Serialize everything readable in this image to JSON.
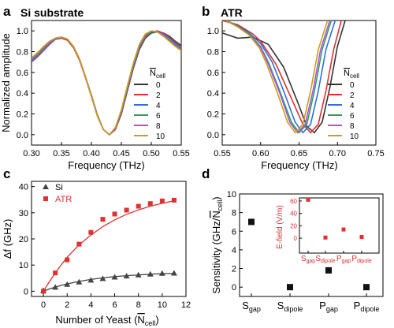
{
  "chart_data": [
    {
      "panel": "a",
      "type": "line",
      "title": "Si substrate",
      "xlabel": "Frequency (THz)",
      "ylabel": "Normalized amplitude",
      "xlim": [
        0.3,
        0.55
      ],
      "ylim": [
        -0.1,
        1.1
      ],
      "xticks": [
        "0.30",
        "0.35",
        "0.40",
        "0.45",
        "0.50",
        "0.55"
      ],
      "yticks": [
        "0.0",
        "0.2",
        "0.4",
        "0.6",
        "0.8",
        "1.0"
      ],
      "legend_title": "N̄cell",
      "legend_position": "right",
      "series": [
        {
          "name": "0",
          "color": "#333333",
          "x": [
            0.3,
            0.31,
            0.32,
            0.33,
            0.34,
            0.35,
            0.36,
            0.37,
            0.38,
            0.39,
            0.4,
            0.41,
            0.42,
            0.43,
            0.44,
            0.45,
            0.46,
            0.47,
            0.48,
            0.49,
            0.5,
            0.51,
            0.52,
            0.53,
            0.54,
            0.55
          ],
          "y": [
            0.72,
            0.76,
            0.82,
            0.88,
            0.92,
            0.93,
            0.91,
            0.84,
            0.72,
            0.56,
            0.38,
            0.19,
            0.05,
            0.0,
            0.05,
            0.2,
            0.42,
            0.64,
            0.82,
            0.93,
            0.98,
            0.99,
            0.98,
            0.95,
            0.9,
            0.86
          ]
        },
        {
          "name": "2",
          "color": "#e03030",
          "x": [
            0.3,
            0.31,
            0.32,
            0.33,
            0.34,
            0.35,
            0.36,
            0.37,
            0.38,
            0.39,
            0.4,
            0.41,
            0.42,
            0.43,
            0.44,
            0.45,
            0.46,
            0.47,
            0.48,
            0.49,
            0.5,
            0.51,
            0.52,
            0.53,
            0.54,
            0.55
          ],
          "y": [
            0.7,
            0.75,
            0.81,
            0.87,
            0.92,
            0.93,
            0.91,
            0.84,
            0.72,
            0.55,
            0.37,
            0.18,
            0.05,
            0.0,
            0.05,
            0.21,
            0.43,
            0.65,
            0.83,
            0.94,
            0.99,
            1.0,
            0.98,
            0.94,
            0.89,
            0.85
          ]
        },
        {
          "name": "4",
          "color": "#2f6fd6",
          "x": [
            0.3,
            0.31,
            0.32,
            0.33,
            0.34,
            0.35,
            0.36,
            0.37,
            0.38,
            0.39,
            0.4,
            0.41,
            0.42,
            0.43,
            0.44,
            0.45,
            0.46,
            0.47,
            0.48,
            0.49,
            0.5,
            0.51,
            0.52,
            0.53,
            0.54,
            0.55
          ],
          "y": [
            0.71,
            0.76,
            0.82,
            0.88,
            0.92,
            0.94,
            0.92,
            0.85,
            0.73,
            0.56,
            0.37,
            0.18,
            0.05,
            0.0,
            0.06,
            0.22,
            0.44,
            0.66,
            0.84,
            0.95,
            0.99,
            0.99,
            0.97,
            0.93,
            0.88,
            0.84
          ]
        },
        {
          "name": "6",
          "color": "#2ea05a",
          "x": [
            0.3,
            0.31,
            0.32,
            0.33,
            0.34,
            0.35,
            0.36,
            0.37,
            0.38,
            0.39,
            0.4,
            0.41,
            0.42,
            0.43,
            0.44,
            0.45,
            0.46,
            0.47,
            0.48,
            0.49,
            0.5,
            0.51,
            0.52,
            0.53,
            0.54,
            0.55
          ],
          "y": [
            0.72,
            0.77,
            0.83,
            0.89,
            0.93,
            0.94,
            0.92,
            0.85,
            0.73,
            0.56,
            0.37,
            0.18,
            0.05,
            0.0,
            0.06,
            0.22,
            0.45,
            0.67,
            0.85,
            0.95,
            0.99,
            0.99,
            0.96,
            0.92,
            0.87,
            0.83
          ]
        },
        {
          "name": "8",
          "color": "#b04fe0",
          "x": [
            0.3,
            0.31,
            0.32,
            0.33,
            0.34,
            0.35,
            0.36,
            0.37,
            0.38,
            0.39,
            0.4,
            0.41,
            0.42,
            0.43,
            0.44,
            0.45,
            0.46,
            0.47,
            0.48,
            0.49,
            0.5,
            0.51,
            0.52,
            0.53,
            0.54,
            0.55
          ],
          "y": [
            0.73,
            0.78,
            0.84,
            0.89,
            0.93,
            0.94,
            0.92,
            0.85,
            0.73,
            0.56,
            0.37,
            0.18,
            0.05,
            0.0,
            0.06,
            0.23,
            0.46,
            0.68,
            0.86,
            0.96,
            1.0,
            0.99,
            0.96,
            0.91,
            0.86,
            0.82
          ]
        },
        {
          "name": "10",
          "color": "#c8a018",
          "x": [
            0.3,
            0.31,
            0.32,
            0.33,
            0.34,
            0.35,
            0.36,
            0.37,
            0.38,
            0.39,
            0.4,
            0.41,
            0.42,
            0.43,
            0.44,
            0.45,
            0.46,
            0.47,
            0.48,
            0.49,
            0.5,
            0.51,
            0.52,
            0.53,
            0.54,
            0.55
          ],
          "y": [
            0.74,
            0.79,
            0.85,
            0.9,
            0.93,
            0.94,
            0.92,
            0.85,
            0.73,
            0.56,
            0.37,
            0.18,
            0.05,
            0.0,
            0.07,
            0.24,
            0.47,
            0.69,
            0.87,
            0.97,
            1.0,
            0.99,
            0.95,
            0.9,
            0.85,
            0.81
          ]
        }
      ]
    },
    {
      "panel": "b",
      "type": "line",
      "title": "ATR",
      "xlabel": "Frequency (THz)",
      "ylabel": "",
      "xlim": [
        0.55,
        0.75
      ],
      "ylim": [
        -0.1,
        1.1
      ],
      "xticks": [
        "0.55",
        "0.60",
        "0.65",
        "0.70",
        "0.75"
      ],
      "yticks": [
        "0.0",
        "0.2",
        "0.4",
        "0.6",
        "0.8",
        "1.0"
      ],
      "legend_title": "N̄cell",
      "legend_position": "right",
      "series": [
        {
          "name": "0",
          "color": "#333333",
          "x": [
            0.55,
            0.57,
            0.59,
            0.61,
            0.63,
            0.65,
            0.66,
            0.67,
            0.68,
            0.69,
            0.7,
            0.71
          ],
          "y": [
            0.98,
            0.93,
            0.94,
            0.87,
            0.65,
            0.28,
            0.08,
            0.02,
            0.12,
            0.45,
            0.85,
            1.1
          ]
        },
        {
          "name": "2",
          "color": "#e03030",
          "x": [
            0.55,
            0.57,
            0.59,
            0.6,
            0.62,
            0.64,
            0.655,
            0.665,
            0.675,
            0.685,
            0.695,
            0.705
          ],
          "y": [
            1.1,
            1.06,
            0.97,
            0.9,
            0.68,
            0.35,
            0.1,
            0.02,
            0.1,
            0.42,
            0.82,
            1.1
          ]
        },
        {
          "name": "4",
          "color": "#2f6fd6",
          "x": [
            0.555,
            0.57,
            0.585,
            0.6,
            0.615,
            0.63,
            0.645,
            0.655,
            0.665,
            0.675,
            0.685,
            0.697
          ],
          "y": [
            1.1,
            1.05,
            0.98,
            0.88,
            0.7,
            0.42,
            0.12,
            0.02,
            0.1,
            0.42,
            0.82,
            1.1
          ]
        },
        {
          "name": "6",
          "color": "#2ea05a",
          "x": [
            0.555,
            0.57,
            0.585,
            0.6,
            0.61,
            0.625,
            0.64,
            0.65,
            0.66,
            0.67,
            0.68,
            0.692
          ],
          "y": [
            1.1,
            1.04,
            0.97,
            0.85,
            0.7,
            0.42,
            0.12,
            0.02,
            0.1,
            0.42,
            0.82,
            1.1
          ]
        },
        {
          "name": "8",
          "color": "#b04fe0",
          "x": [
            0.555,
            0.57,
            0.585,
            0.6,
            0.61,
            0.625,
            0.638,
            0.648,
            0.658,
            0.668,
            0.678,
            0.69
          ],
          "y": [
            1.1,
            1.04,
            0.96,
            0.84,
            0.68,
            0.4,
            0.12,
            0.02,
            0.1,
            0.42,
            0.82,
            1.1
          ]
        },
        {
          "name": "10",
          "color": "#c8a018",
          "x": [
            0.555,
            0.57,
            0.585,
            0.598,
            0.608,
            0.622,
            0.635,
            0.645,
            0.655,
            0.665,
            0.675,
            0.687
          ],
          "y": [
            1.1,
            1.04,
            0.96,
            0.84,
            0.68,
            0.4,
            0.12,
            0.02,
            0.1,
            0.42,
            0.82,
            1.1
          ]
        }
      ]
    },
    {
      "panel": "c",
      "type": "scatter",
      "xlabel": "Number of Yeast (N̄cell)",
      "ylabel": "Δf (GHz)",
      "xlim": [
        -1,
        12
      ],
      "ylim": [
        -2,
        42
      ],
      "xticks": [
        "0",
        "2",
        "4",
        "6",
        "8",
        "10",
        "12"
      ],
      "yticks": [
        "0",
        "10",
        "20",
        "30",
        "40"
      ],
      "legend_position": "top-left",
      "series": [
        {
          "name": "Si",
          "color": "#444444",
          "marker": "triangle",
          "x": [
            0,
            1,
            2,
            3,
            4,
            5,
            6,
            7,
            8,
            9,
            10,
            11
          ],
          "y": [
            0.3,
            1.5,
            2.6,
            3.5,
            4.2,
            4.8,
            5.4,
            5.8,
            6.2,
            6.5,
            6.8,
            6.9
          ],
          "fit_x": [
            0,
            0.5,
            1,
            1.5,
            2,
            3,
            4,
            5,
            6,
            7,
            8,
            9,
            10,
            11
          ],
          "fit_y": [
            0,
            0.85,
            1.6,
            2.25,
            2.8,
            3.75,
            4.5,
            5.1,
            5.6,
            5.95,
            6.25,
            6.5,
            6.7,
            6.85
          ]
        },
        {
          "name": "ATR",
          "color": "#e03030",
          "marker": "square",
          "x": [
            0,
            1,
            2,
            3,
            4,
            5,
            6,
            7,
            8,
            9,
            10,
            11
          ],
          "y": [
            0,
            7,
            12,
            18,
            22.5,
            27.5,
            29.5,
            31,
            32.5,
            33.5,
            34.5,
            34.8
          ],
          "fit_x": [
            0,
            0.5,
            1,
            1.5,
            2,
            3,
            4,
            5,
            6,
            7,
            8,
            9,
            10,
            11
          ],
          "fit_y": [
            0,
            3.6,
            7,
            10.1,
            13,
            17.7,
            21.5,
            24.7,
            27.3,
            29.4,
            31.1,
            32.5,
            33.6,
            34.6
          ]
        }
      ]
    },
    {
      "panel": "d",
      "type": "scatter",
      "ylabel": "Sensitivity (GHz/N̄cell)",
      "categories": [
        "S_gap",
        "S_dipole",
        "P_gap",
        "P_dipole"
      ],
      "ylim": [
        -1,
        10
      ],
      "yticks": [
        "0",
        "2",
        "4",
        "6",
        "8",
        "10"
      ],
      "values": [
        7.0,
        0.0,
        1.8,
        0.0
      ],
      "color": "#111111",
      "inset": {
        "ylabel": "E-field (V/m)",
        "ylim": [
          -5,
          65
        ],
        "yticks": [
          "0",
          "20",
          "40",
          "60"
        ],
        "categories": [
          "S_gap",
          "S_dipole",
          "P_gap",
          "P_dipole"
        ],
        "values": [
          62,
          1,
          14,
          2
        ],
        "color": "#e03030"
      }
    }
  ],
  "labels": {
    "panel_a": "a",
    "panel_b": "b",
    "panel_c": "c",
    "panel_d": "d",
    "a_title": "Si substrate",
    "b_title": "ATR",
    "a_ylabel": "Normalized amplitude",
    "freq_label": "Frequency (THz)",
    "c_ylabel": "Δf (GHz)",
    "c_xlabel_main": "Number of Yeast (",
    "c_xlabel_sym": "N",
    "c_xlabel_sub": "cell",
    "c_xlabel_end": ")",
    "d_ylabel_main": "Sensitivity (GHz/",
    "d_ylabel_sym": "N",
    "d_ylabel_sub": "cell",
    "d_ylabel_end": ")",
    "legend_sym": "N",
    "legend_sub": "cell",
    "inset_ylabel": "E-field (V/m)",
    "cat_letters": [
      "S",
      "S",
      "P",
      "P"
    ],
    "cat_subs": [
      "gap",
      "dipole",
      "gap",
      "dipole"
    ]
  }
}
